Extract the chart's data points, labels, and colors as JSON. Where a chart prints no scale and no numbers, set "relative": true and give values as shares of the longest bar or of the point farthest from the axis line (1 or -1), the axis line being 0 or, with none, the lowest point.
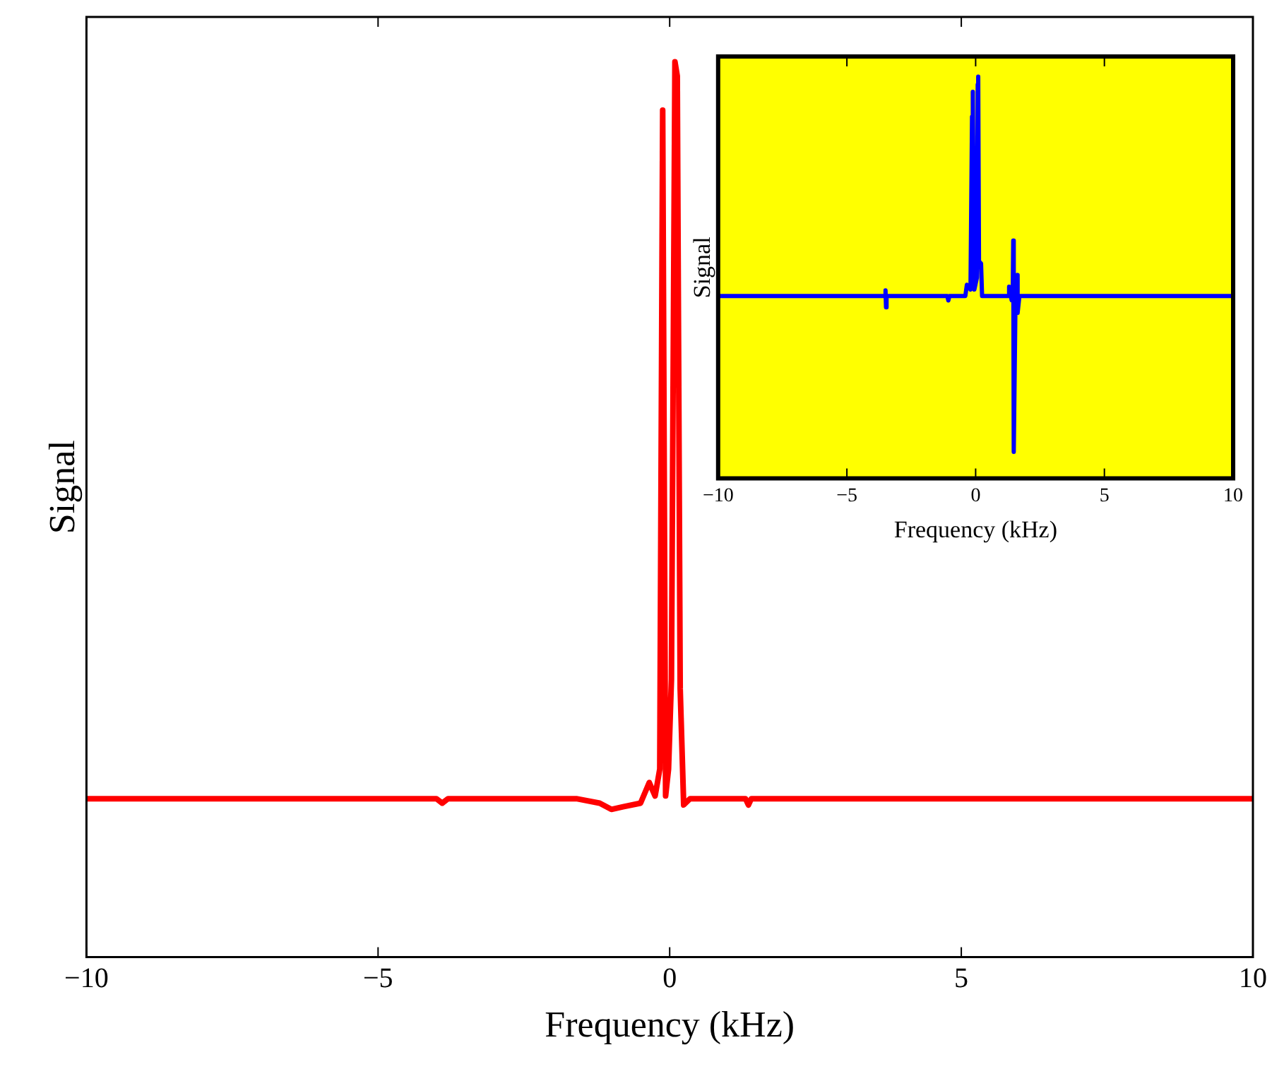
{
  "chart_data": [
    {
      "type": "line",
      "relative": true,
      "xlabel": "Frequency (kHz)",
      "ylabel": "Signal",
      "xlim": [
        -10,
        10
      ],
      "xticks": [
        -10,
        -5,
        0,
        5,
        10
      ],
      "grid": false,
      "legend": false,
      "marker": "none",
      "series": [
        {
          "color": "#ff0000",
          "x": [
            -10,
            -4,
            -3.9,
            -3.8,
            -1.6,
            -1.2,
            -1.0,
            -0.8,
            -0.5,
            -0.35,
            -0.25,
            -0.17,
            -0.12,
            -0.07,
            -0.02,
            0.03,
            0.09,
            0.13,
            0.18,
            0.24,
            0.35,
            1.3,
            1.35,
            1.4,
            10
          ],
          "values": [
            0.177,
            0.177,
            0.172,
            0.177,
            0.177,
            0.172,
            0.165,
            0.168,
            0.172,
            0.195,
            0.18,
            0.21,
            0.946,
            0.18,
            0.21,
            0.31,
            1.0,
            0.984,
            0.3,
            0.17,
            0.177,
            0.177,
            0.17,
            0.177,
            0.177
          ]
        }
      ]
    },
    {
      "type": "line",
      "relative": true,
      "xlabel": "Frequency (kHz)",
      "ylabel": "Signal",
      "xlim": [
        -10,
        10
      ],
      "xticks": [
        -10,
        -5,
        0,
        5,
        10
      ],
      "grid": false,
      "legend": false,
      "marker": "none",
      "series": [
        {
          "color": "#0000ff",
          "x": [
            -10,
            -3.52,
            -3.5,
            -3.48,
            -3.46,
            -1.1,
            -1.06,
            -1.02,
            -0.4,
            -0.34,
            -0.2,
            -0.14,
            -0.12,
            -0.1,
            -0.05,
            0.05,
            0.08,
            0.1,
            0.13,
            0.21,
            0.25,
            1.28,
            1.3,
            1.4,
            1.44,
            1.46,
            1.48,
            1.55,
            1.61,
            1.63,
            1.7,
            10
          ],
          "values": [
            0.454,
            0.454,
            0.468,
            0.426,
            0.454,
            0.454,
            0.443,
            0.454,
            0.454,
            0.482,
            0.47,
            0.9,
            0.962,
            0.95,
            0.47,
            0.5,
            0.98,
            1.0,
            0.54,
            0.535,
            0.454,
            0.454,
            0.477,
            0.443,
            0.454,
            0.592,
            0.066,
            0.454,
            0.506,
            0.412,
            0.454,
            0.454
          ]
        }
      ]
    }
  ]
}
